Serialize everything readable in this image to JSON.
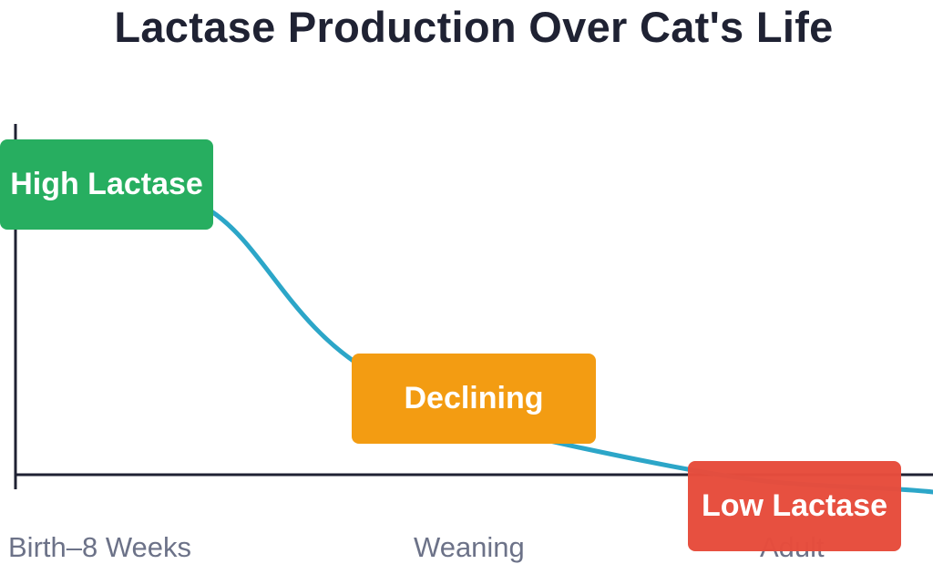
{
  "title": "Lactase Production Over Cat's Life",
  "stages": [
    {
      "label": "High Lactase",
      "color": "#27ae60"
    },
    {
      "label": "Declining",
      "color": "#f39c12"
    },
    {
      "label": "Low Lactase",
      "color": "#e74c3c"
    }
  ],
  "x_labels": [
    "Birth–8 Weeks",
    "Weaning",
    "Adult"
  ],
  "curve_color": "#2ca6c8",
  "axis_color": "#1f2233",
  "label_color": "#6c7288"
}
